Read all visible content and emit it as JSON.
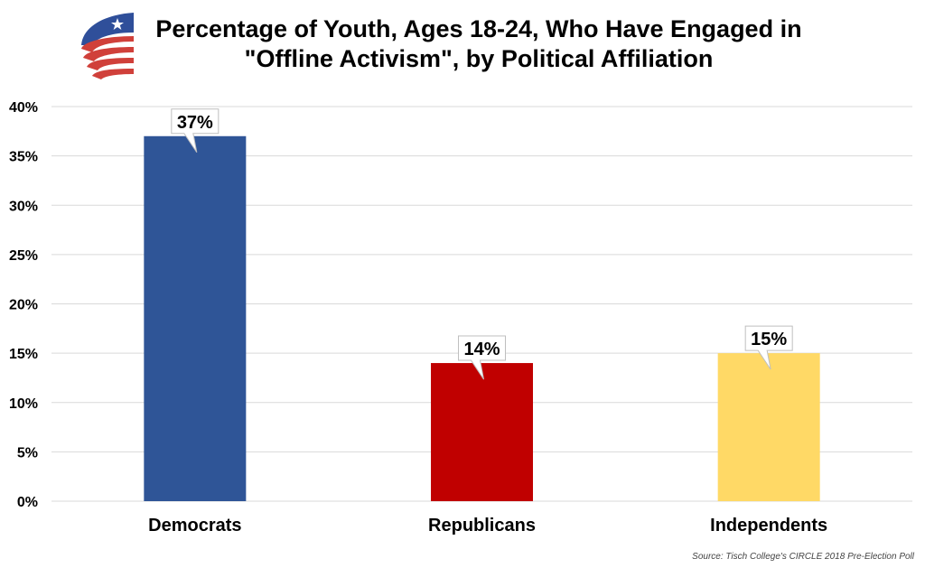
{
  "header": {
    "title_line1": "Percentage of Youth, Ages 18-24, Who Have Engaged in",
    "title_line2": "\"Offline Activism\", by Political Affiliation",
    "logo": "circle-flag-logo-icon"
  },
  "source": "Source: Tisch College's CIRCLE 2018 Pre-Election Poll",
  "chart_data": {
    "type": "bar",
    "title": "Percentage of Youth, Ages 18-24, Who Have Engaged in \"Offline Activism\", by Political Affiliation",
    "categories": [
      "Democrats",
      "Republicans",
      "Independents"
    ],
    "values": [
      37,
      14,
      15
    ],
    "data_labels": [
      "37%",
      "14%",
      "15%"
    ],
    "colors": [
      "#2f5597",
      "#c00000",
      "#ffd966"
    ],
    "xlabel": "",
    "ylabel": "",
    "ylim": [
      0,
      40
    ],
    "yticks": [
      0,
      5,
      10,
      15,
      20,
      25,
      30,
      35,
      40
    ],
    "ytick_labels": [
      "0%",
      "5%",
      "10%",
      "15%",
      "20%",
      "25%",
      "30%",
      "35%",
      "40%"
    ],
    "grid": true,
    "legend": "none",
    "source": "Source: Tisch College's CIRCLE 2018 Pre-Election Poll"
  }
}
